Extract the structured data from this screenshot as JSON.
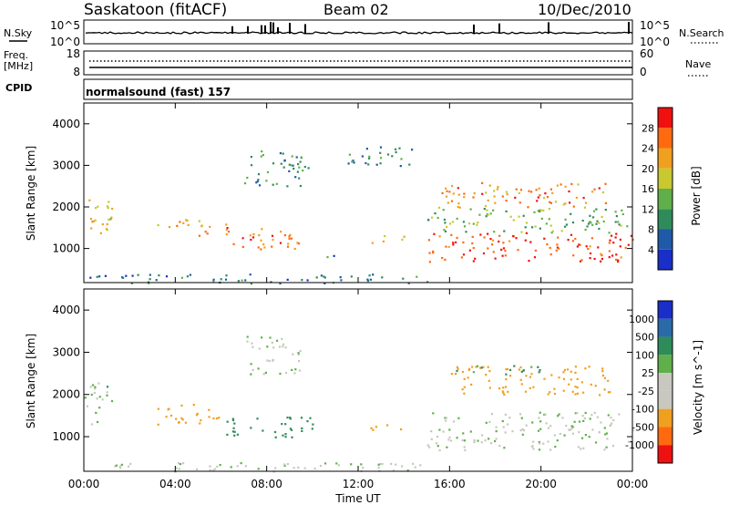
{
  "header": {
    "station": "Saskatoon (fitACF)",
    "beam": "Beam 02",
    "date": "10/Dec/2010",
    "mode_line": "normalsound (fast) 157"
  },
  "panels": {
    "nsky": {
      "label": "N.Sky",
      "left_ticks": [
        "10^5",
        "10^0"
      ],
      "right_ticks": [
        "10^5",
        "10^0"
      ],
      "right_label": "N.Search"
    },
    "freq": {
      "label_line1": "Freq.",
      "label_line2": "[MHz]",
      "left_ticks": [
        "18",
        "8"
      ],
      "right_ticks": [
        "60",
        "0"
      ],
      "right_label": "Nave"
    },
    "cpid_label": "CPID"
  },
  "axes": {
    "x_label": "Time UT",
    "x_ticks": [
      "00:00",
      "04:00",
      "08:00",
      "12:00",
      "16:00",
      "20:00",
      "00:00"
    ],
    "y_label_power": "Slant Range [km]",
    "y_label_velocity": "Slant Range [km]",
    "y_ticks": [
      "1000",
      "2000",
      "3000",
      "4000"
    ]
  },
  "colors": {
    "power_scale": [
      "#1a2ec8",
      "#1f5aa8",
      "#2f8c5a",
      "#5fb04a",
      "#c8c830",
      "#f0a020",
      "#ff6a10",
      "#f01010"
    ],
    "velocity_scale": [
      "#ee1111",
      "#ff6a10",
      "#f0a020",
      "#c8c8c0",
      "#c8c8c0",
      "#5fb04a",
      "#2f8c5a",
      "#2a6aa8",
      "#1a2ec8"
    ]
  },
  "chart_data": [
    {
      "type": "heatmap",
      "title": "",
      "xlabel": "Time UT",
      "ylabel": "Slant Range [km]",
      "xlim": [
        "00:00",
        "24:00"
      ],
      "ylim": [
        180,
        4500
      ],
      "colorbar": {
        "label": "Power [dB]",
        "ticks": [
          "4",
          "8",
          "12",
          "16",
          "20",
          "24",
          "28"
        ],
        "range": [
          0,
          32
        ]
      },
      "regions": [
        {
          "t_start": 0.0,
          "t_end": 1.2,
          "range_km": [
            1300,
            2300
          ],
          "level_dB": 20
        },
        {
          "t_start": 3.2,
          "t_end": 5.2,
          "range_km": [
            1500,
            1800
          ],
          "level_dB": 22
        },
        {
          "t_start": 5.0,
          "t_end": 6.5,
          "range_km": [
            1200,
            1600
          ],
          "level_dB": 24
        },
        {
          "t_start": 6.5,
          "t_end": 10.0,
          "range_km": [
            1000,
            1500
          ],
          "level_dB": 24
        },
        {
          "t_start": 7.0,
          "t_end": 9.5,
          "range_km": [
            2500,
            3400
          ],
          "level_dB": 10
        },
        {
          "t_start": 9.0,
          "t_end": 9.8,
          "range_km": [
            2700,
            3100
          ],
          "level_dB": 8
        },
        {
          "t_start": 10.5,
          "t_end": 11.5,
          "range_km": [
            800,
            900
          ],
          "level_dB": 8
        },
        {
          "t_start": 12.5,
          "t_end": 14.0,
          "range_km": [
            1150,
            1350
          ],
          "level_dB": 18
        },
        {
          "t_start": 11.5,
          "t_end": 14.5,
          "range_km": [
            3000,
            3500
          ],
          "level_dB": 10
        },
        {
          "t_start": 15.0,
          "t_end": 24.0,
          "range_km": [
            700,
            1400
          ],
          "level_dB": 28
        },
        {
          "t_start": 15.5,
          "t_end": 23.0,
          "range_km": [
            2000,
            2600
          ],
          "level_dB": 24
        },
        {
          "t_start": 15.0,
          "t_end": 24.0,
          "range_km": [
            1400,
            2000
          ],
          "level_dB": 14
        },
        {
          "t_start": 0.0,
          "t_end": 15.0,
          "range_km": [
            180,
            400
          ],
          "level_dB": 8
        }
      ]
    },
    {
      "type": "heatmap",
      "title": "",
      "xlabel": "Time UT",
      "ylabel": "Slant Range [km]",
      "xlim": [
        "00:00",
        "24:00"
      ],
      "ylim": [
        180,
        4500
      ],
      "colorbar": {
        "label": "Velocity [m s^-1]",
        "ticks": [
          "1000",
          "500",
          "100",
          "25",
          "-25",
          "-100",
          "-500",
          "-1000"
        ],
        "range": [
          -1000,
          1000
        ]
      },
      "regions": [
        {
          "t_start": 0.0,
          "t_end": 1.2,
          "range_km": [
            1300,
            2300
          ],
          "velocity": 25
        },
        {
          "t_start": 3.2,
          "t_end": 6.0,
          "range_km": [
            1300,
            1800
          ],
          "velocity": -300
        },
        {
          "t_start": 6.0,
          "t_end": 10.0,
          "range_km": [
            1000,
            1500
          ],
          "velocity": 300
        },
        {
          "t_start": 7.0,
          "t_end": 9.5,
          "range_km": [
            2500,
            3400
          ],
          "velocity": 0
        },
        {
          "t_start": 12.5,
          "t_end": 14.0,
          "range_km": [
            1150,
            1350
          ],
          "velocity": -300
        },
        {
          "t_start": 15.0,
          "t_end": 24.0,
          "range_km": [
            700,
            1600
          ],
          "velocity": 0
        },
        {
          "t_start": 16.0,
          "t_end": 23.0,
          "range_km": [
            2000,
            2700
          ],
          "velocity": -400
        },
        {
          "t_start": 16.0,
          "t_end": 20.0,
          "range_km": [
            2500,
            2700
          ],
          "velocity": 100
        },
        {
          "t_start": 0.0,
          "t_end": 15.0,
          "range_km": [
            180,
            400
          ],
          "velocity": 0
        }
      ]
    }
  ]
}
